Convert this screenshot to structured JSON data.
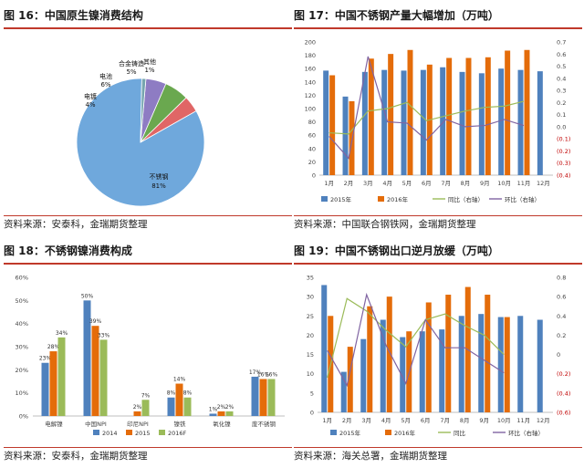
{
  "panels": [
    {
      "title": "图 16：中国原生镍消费结构",
      "source": "资料来源：安泰科，金瑞期货整理"
    },
    {
      "title": "图 17：中国不锈钢产量大幅增加（万吨）",
      "source": "资料来源：中国联合钢铁网，金瑞期货整理"
    },
    {
      "title": "图 18：不锈钢镍消费构成",
      "source": "资料来源：安泰科，金瑞期货整理"
    },
    {
      "title": "图 19：中国不锈钢出口逆月放缓（万吨）",
      "source": "资料来源：海关总署，金瑞期货整理"
    }
  ],
  "colors": {
    "rule": "#c0392b",
    "blue": "#4f81bd",
    "orange": "#e46c0a",
    "green": "#9bbb59",
    "purple": "#8064a2",
    "red_label": "#c00000"
  },
  "chart_data": [
    {
      "type": "pie",
      "labels": [
        "不锈钢",
        "电镀",
        "电池",
        "合金铸造",
        "其他"
      ],
      "values": [
        81,
        4,
        6,
        5,
        1
      ],
      "value_labels": [
        "81%",
        "4%",
        "6%",
        "5%",
        "1%"
      ],
      "colors": [
        "#6fa8dc",
        "#e06666",
        "#6aa84f",
        "#8e7cc3",
        "#76a5af"
      ]
    },
    {
      "type": "bar",
      "categories": [
        "1月",
        "2月",
        "3月",
        "4月",
        "5月",
        "6月",
        "7月",
        "8月",
        "9月",
        "10月",
        "11月",
        "12月"
      ],
      "series": [
        {
          "name": "2015年",
          "kind": "bar",
          "axis": "left",
          "color": "#4f81bd",
          "values": [
            157,
            118,
            155,
            158,
            157,
            158,
            162,
            155,
            153,
            160,
            158,
            156
          ]
        },
        {
          "name": "2016年",
          "kind": "bar",
          "axis": "left",
          "color": "#e46c0a",
          "values": [
            150,
            111,
            175,
            182,
            188,
            166,
            176,
            176,
            177,
            187,
            188,
            null
          ]
        },
        {
          "name": "同比（右轴）",
          "kind": "line",
          "axis": "right",
          "color": "#9bbb59",
          "values": [
            -0.05,
            -0.06,
            0.13,
            0.15,
            0.2,
            0.05,
            0.09,
            0.13,
            0.16,
            0.17,
            0.21,
            null
          ]
        },
        {
          "name": "环比（右轴）",
          "kind": "line",
          "axis": "right",
          "color": "#8064a2",
          "values": [
            -0.08,
            -0.26,
            0.58,
            0.04,
            0.03,
            -0.11,
            0.06,
            0.0,
            0.01,
            0.06,
            0.01,
            null
          ]
        }
      ],
      "ylim": [
        0,
        200
      ],
      "yticks": [
        "0",
        "20",
        "40",
        "60",
        "80",
        "100",
        "120",
        "140",
        "160",
        "180",
        "200"
      ],
      "y2lim": [
        -0.4,
        0.7
      ],
      "y2ticks": [
        "(0.4)",
        "(0.3)",
        "(0.2)",
        "(0.1)",
        "0.0",
        "0.1",
        "0.2",
        "0.3",
        "0.4",
        "0.5",
        "0.6",
        "0.7"
      ],
      "legend": "bottom",
      "grid": false
    },
    {
      "type": "bar",
      "categories": [
        "电解镍",
        "中国NPI",
        "印尼NPI",
        "镍铁",
        "氧化镍",
        "废不锈钢"
      ],
      "series": [
        {
          "name": "2014",
          "color": "#4f81bd",
          "values": [
            23,
            50,
            0,
            8,
            1,
            17
          ],
          "labels": [
            "23%",
            "50%",
            "",
            "8%",
            "1%",
            "17%"
          ]
        },
        {
          "name": "2015",
          "color": "#e46c0a",
          "values": [
            28,
            39,
            2,
            14,
            2,
            16
          ],
          "labels": [
            "28%",
            "39%",
            "2%",
            "14%",
            "2%",
            "16%"
          ]
        },
        {
          "name": "2016F",
          "color": "#9bbb59",
          "values": [
            34,
            33,
            7,
            8,
            2,
            16
          ],
          "labels": [
            "34%",
            "33%",
            "7%",
            "8%",
            "2%",
            "16%"
          ]
        }
      ],
      "ylim": [
        0,
        60
      ],
      "yticks": [
        "0%",
        "10%",
        "20%",
        "30%",
        "40%",
        "50%",
        "60%"
      ],
      "legend": "bottom",
      "grid": false
    },
    {
      "type": "bar",
      "categories": [
        "1月",
        "2月",
        "3月",
        "4月",
        "5月",
        "6月",
        "7月",
        "8月",
        "9月",
        "10月",
        "11月",
        "12月"
      ],
      "series": [
        {
          "name": "2015年",
          "kind": "bar",
          "axis": "left",
          "color": "#4f81bd",
          "values": [
            33,
            10.5,
            19,
            24,
            19.5,
            21,
            21.5,
            25,
            25.5,
            24.7,
            25,
            24
          ]
        },
        {
          "name": "2016年",
          "kind": "bar",
          "axis": "left",
          "color": "#e46c0a",
          "values": [
            25,
            17,
            27.5,
            30,
            21,
            28.5,
            30.5,
            32.5,
            30.5,
            24.7,
            null,
            null
          ]
        },
        {
          "name": "同比",
          "kind": "line",
          "axis": "right",
          "color": "#9bbb59",
          "values": [
            -0.24,
            0.58,
            0.45,
            0.25,
            0.08,
            0.36,
            0.42,
            0.3,
            0.2,
            0.0,
            null,
            null
          ]
        },
        {
          "name": "环比（右轴）",
          "kind": "line",
          "axis": "right",
          "color": "#8064a2",
          "values": [
            0.04,
            -0.32,
            0.62,
            0.09,
            -0.3,
            0.36,
            0.07,
            0.07,
            -0.06,
            -0.19,
            null,
            null
          ]
        }
      ],
      "ylim": [
        0,
        35
      ],
      "yticks": [
        "0",
        "5",
        "10",
        "15",
        "20",
        "25",
        "30",
        "35"
      ],
      "y2lim": [
        -0.6,
        0.8
      ],
      "y2ticks": [
        "(0.6)",
        "(0.4)",
        "(0.2)",
        "0",
        "0.2",
        "0.4",
        "0.6",
        "0.8"
      ],
      "legend": "bottom",
      "grid": false
    }
  ]
}
